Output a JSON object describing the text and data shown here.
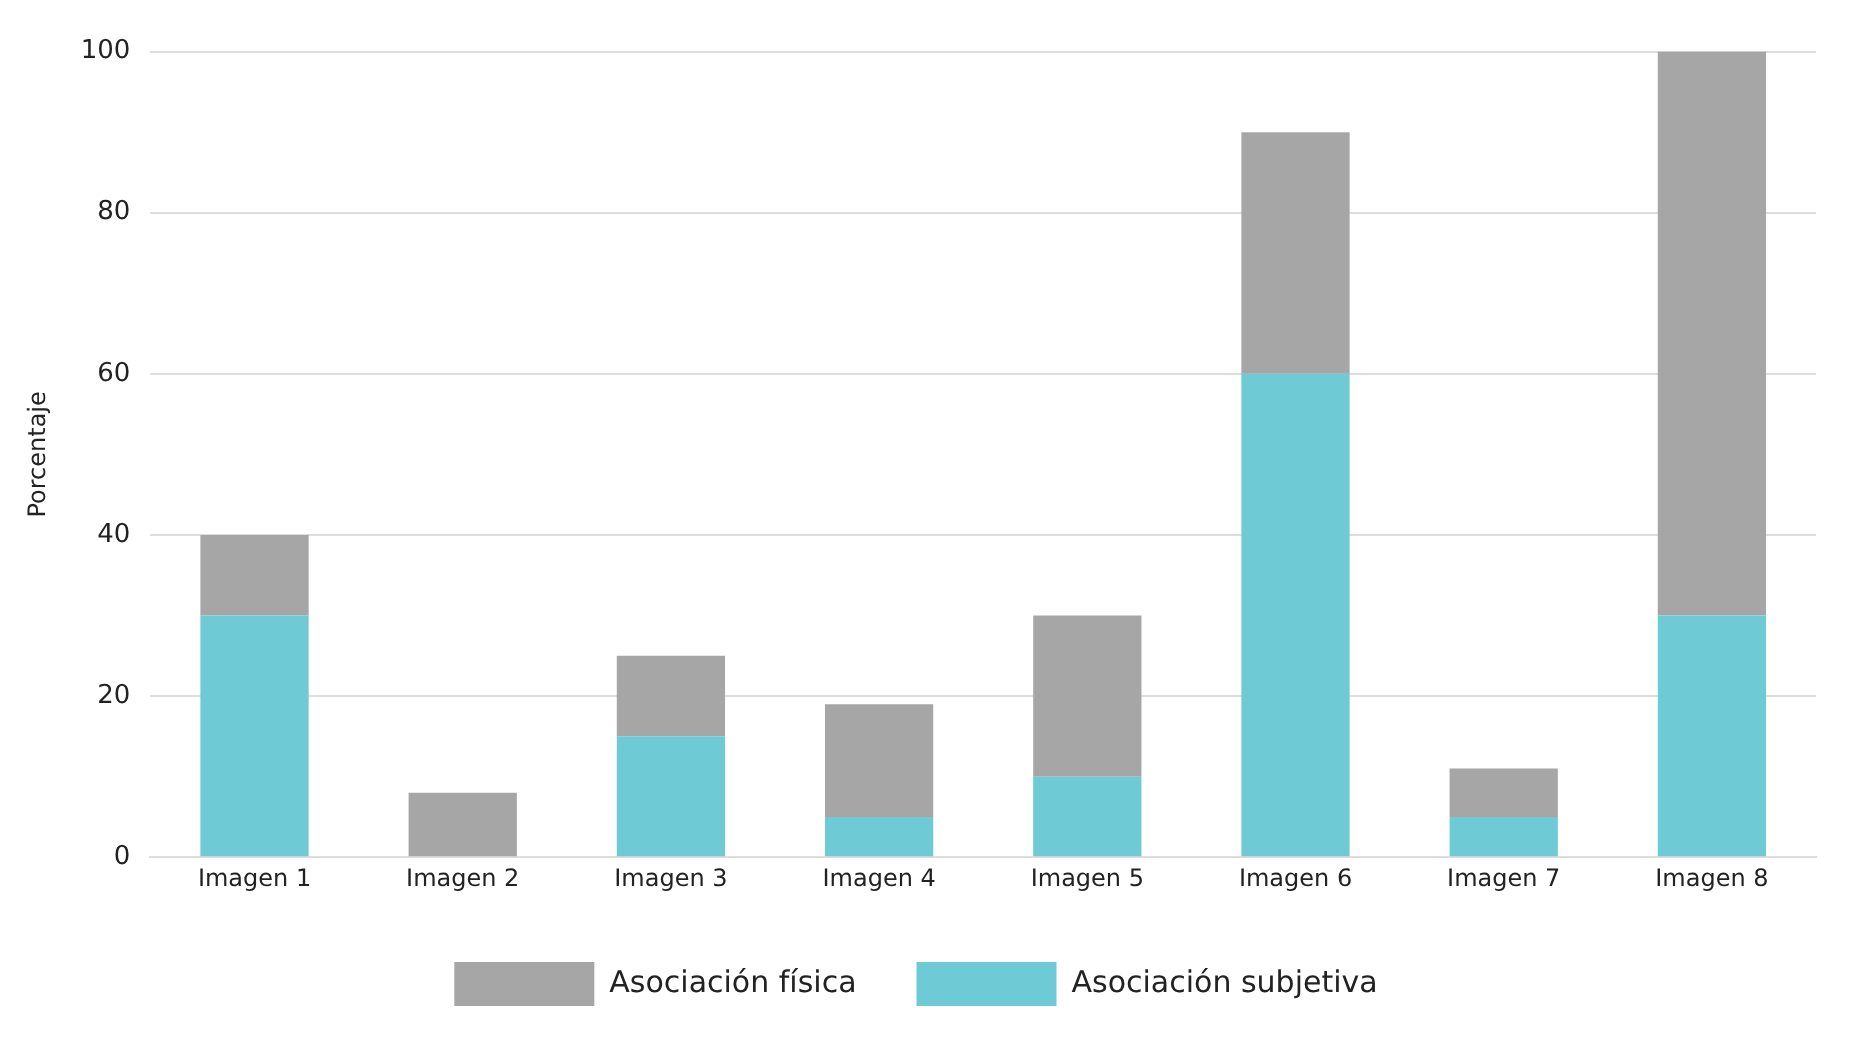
{
  "chart_data": {
    "type": "bar",
    "ylabel": "Porcentaje",
    "categories": [
      "Imagen 1",
      "Imagen 2",
      "Imagen 3",
      "Imagen 4",
      "Imagen 5",
      "Imagen 6",
      "Imagen 7",
      "Imagen 8"
    ],
    "series": [
      {
        "name": "Asociación subjetiva",
        "color": "#6ecbd6",
        "values": [
          30,
          0,
          15,
          5,
          10,
          60,
          5,
          30
        ]
      },
      {
        "name": "Asociación física",
        "color": "#a6a6a6",
        "values": [
          10,
          8,
          10,
          14,
          20,
          30,
          6,
          70
        ]
      }
    ],
    "stacked": true,
    "ylim": [
      0,
      100
    ],
    "yticks": [
      0,
      20,
      40,
      60,
      80,
      100
    ],
    "grid": "y",
    "legend": "bottom"
  }
}
